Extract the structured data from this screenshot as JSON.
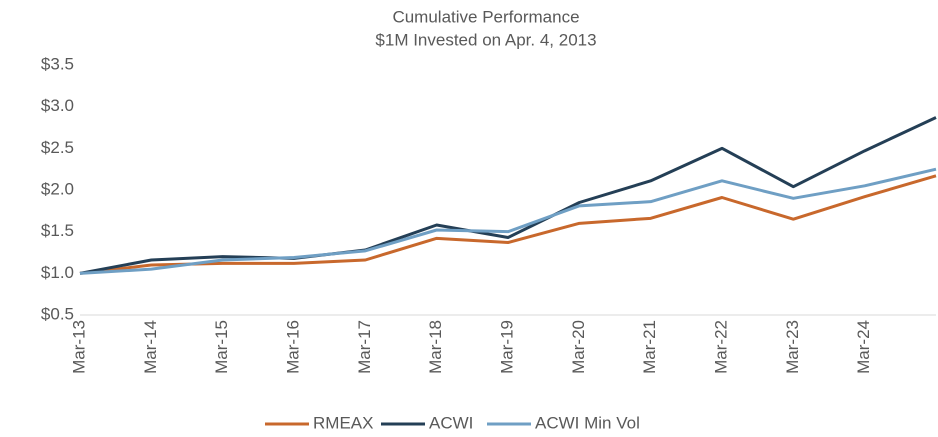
{
  "chart_data": {
    "type": "line",
    "title": "Cumulative Performance",
    "subtitle": "$1M Invested on Apr. 4, 2013",
    "categories": [
      "Mar-13",
      "Mar-14",
      "Mar-15",
      "Mar-16",
      "Mar-17",
      "Mar-18",
      "Mar-19",
      "Mar-20",
      "Mar-21",
      "Mar-22",
      "Mar-23",
      "Mar-24",
      null
    ],
    "series": [
      {
        "name": "RMEAX",
        "color": "#c8682c",
        "values": [
          1.0,
          1.1,
          1.12,
          1.12,
          1.16,
          1.42,
          1.37,
          1.6,
          1.66,
          1.91,
          1.65,
          1.92,
          2.17
        ]
      },
      {
        "name": "ACWI",
        "color": "#243f56",
        "values": [
          1.0,
          1.16,
          1.2,
          1.18,
          1.28,
          1.58,
          1.43,
          1.85,
          2.11,
          2.5,
          2.04,
          2.47,
          2.87
        ]
      },
      {
        "name": "ACWI Min Vol",
        "color": "#6f9fc4",
        "values": [
          1.0,
          1.05,
          1.16,
          1.19,
          1.27,
          1.52,
          1.5,
          1.81,
          1.86,
          2.11,
          1.9,
          2.05,
          2.25
        ]
      }
    ],
    "ylim": [
      0.5,
      3.5
    ],
    "yticks": [
      {
        "value": 0.5,
        "label": "$0.5"
      },
      {
        "value": 1.0,
        "label": "$1.0"
      },
      {
        "value": 1.5,
        "label": "$1.5"
      },
      {
        "value": 2.0,
        "label": "$2.0"
      },
      {
        "value": 2.5,
        "label": "$2.5"
      },
      {
        "value": 3.0,
        "label": "$3.0"
      },
      {
        "value": 3.5,
        "label": "$3.5"
      }
    ],
    "grid": false,
    "legend": "bottom"
  }
}
